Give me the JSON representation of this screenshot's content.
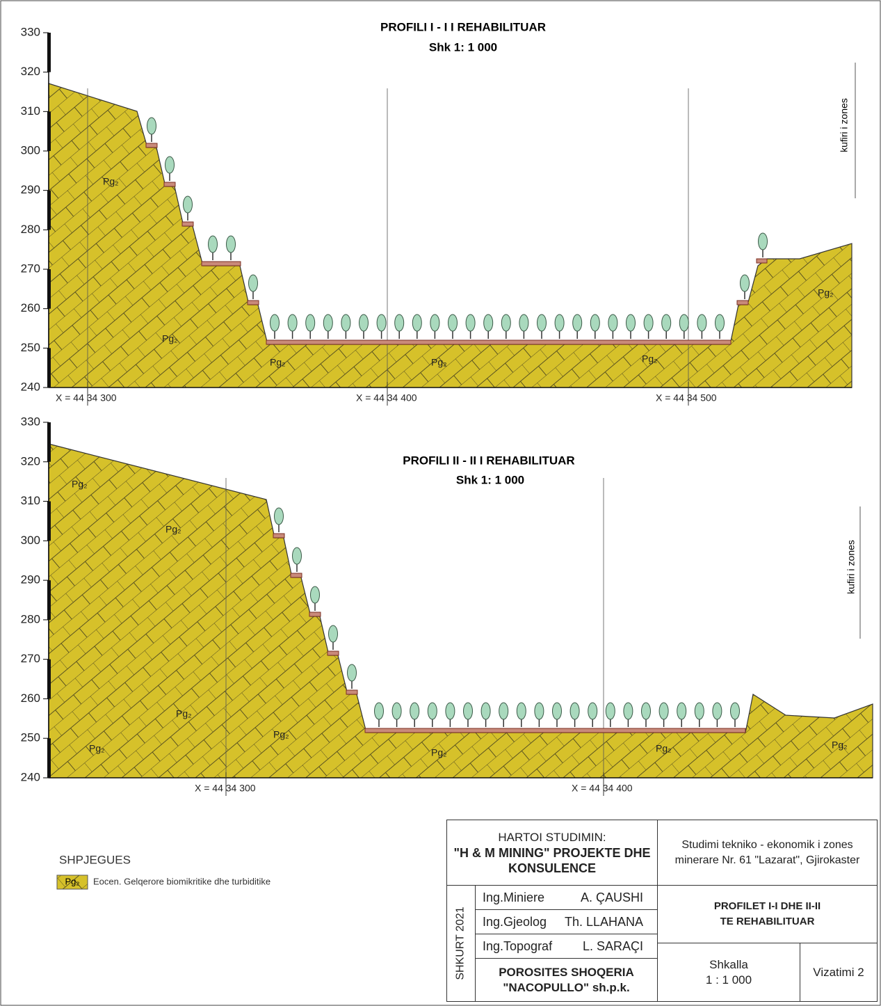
{
  "profiles": [
    {
      "title": "PROFILI I - I I REHABILITUAR",
      "scale": "Shk 1: 1 000",
      "yticks": [
        240,
        250,
        260,
        270,
        280,
        290,
        300,
        310,
        320,
        330
      ],
      "x_labels": [
        "X = 44 34 300",
        "X = 44 34 400",
        "X = 44 34 500"
      ],
      "unit_labels": [
        "Pg₂",
        "Pg₂",
        "Pg₂",
        "Pg₂",
        "Pg₂",
        "Pg₂"
      ],
      "boundary": "kufiri i zones"
    },
    {
      "title": "PROFILI II - II I REHABILITUAR",
      "scale": "Shk 1: 1 000",
      "yticks": [
        240,
        250,
        260,
        270,
        280,
        290,
        300,
        310,
        320,
        330
      ],
      "x_labels": [
        "X = 44 34 300",
        "X = 44 34 400"
      ],
      "unit_labels": [
        "Pg₂",
        "Pg₂",
        "Pg₂",
        "Pg₂",
        "Pg₂",
        "Pg₂",
        "Pg₂",
        "Pg₂"
      ],
      "boundary": "kufiri i zones"
    }
  ],
  "legend": {
    "title": "SHPJEGUES",
    "symbol": "Pg₂",
    "text": "Eocen. Gelqerore biomikritike dhe turbiditike"
  },
  "title_block": {
    "prepared_by": "HARTOI STUDIMIN:",
    "company": "\"H & M MINING\" PROJEKTE DHE KONSULENCE",
    "date": "SHKURT 2021",
    "staff": [
      [
        "Ing.Miniere",
        "A. ÇAUSHI"
      ],
      [
        "Ing.Gjeolog",
        "Th. LLAHANA"
      ],
      [
        "Ing.Topograf",
        "L. SARAÇI"
      ]
    ],
    "client": "POROSITES SHOQERIA \"NACOPULLO\" sh.p.k.",
    "study": "Studimi tekniko - ekonomik i zones minerare Nr. 61 \"Lazarat\", Gjirokaster",
    "drawing_title": "PROFILET I-I DHE II-II TE REHABILITUAR",
    "scale_label": "Shkalla",
    "scale": "1 : 1 000",
    "drawing": "Vizatimi 2"
  }
}
